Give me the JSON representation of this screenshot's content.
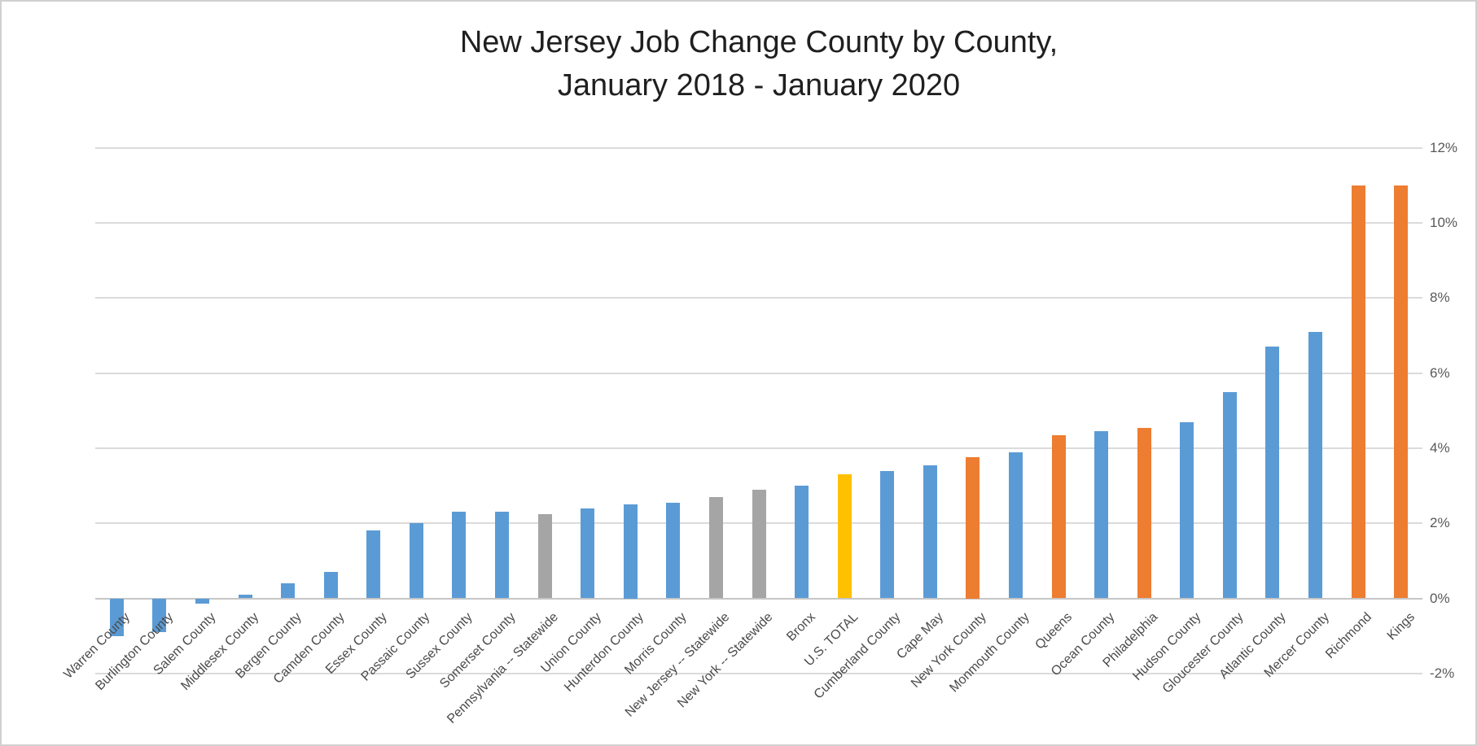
{
  "chart_data": {
    "type": "bar",
    "title_line1": "New Jersey Job Change County by County,",
    "title_line2": "January 2018 - January 2020",
    "xlabel": "",
    "ylabel": "",
    "ylim": [
      -2,
      12
    ],
    "y_tick_step": 2,
    "y_axis_side": "right",
    "gridlines": true,
    "legend": "none",
    "y_tick_labels": [
      "12%",
      "10%",
      "8%",
      "6%",
      "4%",
      "2%",
      "0%",
      "-2%"
    ],
    "categories": [
      "Warren County",
      "Burlington County",
      "Salem County",
      "Middlesex County",
      "Bergen County",
      "Camden County",
      "Essex County",
      "Passaic County",
      "Sussex County",
      "Somerset County",
      "Pennsylvania -- Statewide",
      "Union County",
      "Hunterdon County",
      "Morris County",
      "New Jersey -- Statewide",
      "New York -- Statewide",
      "Bronx",
      "U.S. TOTAL",
      "Cumberland County",
      "Cape May",
      "New York County",
      "Monmouth County",
      "Queens",
      "Ocean County",
      "Philadelphia",
      "Hudson County",
      "Gloucester County",
      "Atlantic County",
      "Mercer County",
      "Richmond",
      "Kings"
    ],
    "values": [
      -1.0,
      -0.9,
      -0.15,
      0.1,
      0.4,
      0.7,
      1.8,
      2.0,
      2.3,
      2.3,
      2.25,
      2.4,
      2.5,
      2.55,
      2.7,
      2.9,
      3.0,
      3.3,
      3.4,
      3.55,
      3.75,
      3.9,
      4.35,
      4.45,
      4.55,
      4.7,
      5.5,
      6.7,
      7.1,
      11.0,
      11.0
    ],
    "bar_color_keys": [
      "blue",
      "blue",
      "blue",
      "blue",
      "blue",
      "blue",
      "blue",
      "blue",
      "blue",
      "blue",
      "gray",
      "blue",
      "blue",
      "blue",
      "gray",
      "gray",
      "blue",
      "yellow",
      "blue",
      "blue",
      "orange",
      "blue",
      "orange",
      "blue",
      "orange",
      "blue",
      "blue",
      "blue",
      "blue",
      "orange",
      "orange"
    ],
    "colors": {
      "blue": "#5B9BD5",
      "orange": "#ED7D31",
      "gray": "#A5A5A5",
      "yellow": "#FFC000",
      "gridline": "#DBDBDB",
      "zero_axis": "#C6C6C6",
      "tick_text": "#595959",
      "category_text": "#4A4A4A",
      "title_text": "#1F1F1F"
    }
  }
}
